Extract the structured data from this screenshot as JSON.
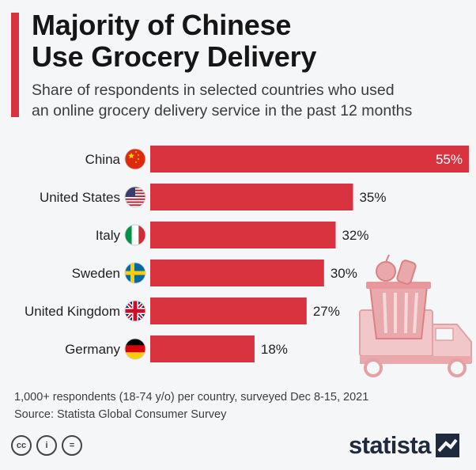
{
  "title_line1": "Majority of Chinese",
  "title_line2": "Use Grocery Delivery",
  "subtitle_line1": "Share of respondents in selected countries who used",
  "subtitle_line2": "an online grocery delivery service in the past 12 months",
  "chart_data": {
    "type": "bar",
    "orientation": "horizontal",
    "categories": [
      "China",
      "United States",
      "Italy",
      "Sweden",
      "United Kingdom",
      "Germany"
    ],
    "values": [
      55,
      35,
      32,
      30,
      27,
      18
    ],
    "value_labels": [
      "55%",
      "35%",
      "32%",
      "30%",
      "27%",
      "18%"
    ],
    "flags": [
      "china-flag-icon",
      "usa-flag-icon",
      "italy-flag-icon",
      "sweden-flag-icon",
      "uk-flag-icon",
      "germany-flag-icon"
    ],
    "title": "Majority of Chinese Use Grocery Delivery",
    "xlabel": "",
    "ylabel": "",
    "xlim": [
      0,
      55
    ],
    "grid": false,
    "bar_color": "#d8333f"
  },
  "footnote": "1,000+ respondents (18-74 y/o) per country, surveyed Dec 8-15, 2021",
  "source": "Source: Statista Global Consumer Survey",
  "license_icons": [
    "cc-icon",
    "by-icon",
    "nd-icon"
  ],
  "license_labels": [
    "cc",
    "i",
    "="
  ],
  "brand": "statista",
  "colors": {
    "accent": "#d8333f",
    "background": "#f5f6f8",
    "text": "#1d1d1d",
    "brand": "#1f2a3c"
  }
}
